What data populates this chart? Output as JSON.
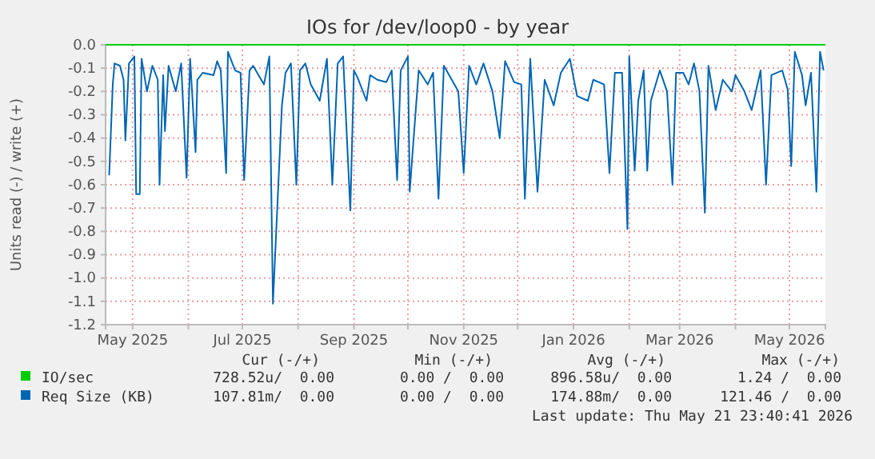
{
  "chart_data": {
    "type": "line",
    "title": "IOs for /dev/loop0 - by year",
    "ylabel": "Units read (-) / write (+)",
    "xlim": [
      "2025-04-16",
      "2026-05-21"
    ],
    "xticks": [
      {
        "value": "2025-05-01",
        "label": "May 2025"
      },
      {
        "value": "2025-06-01",
        "label": null
      },
      {
        "value": "2025-07-01",
        "label": "Jul 2025"
      },
      {
        "value": "2025-08-01",
        "label": null
      },
      {
        "value": "2025-09-01",
        "label": "Sep 2025"
      },
      {
        "value": "2025-10-01",
        "label": null
      },
      {
        "value": "2025-11-01",
        "label": "Nov 2025"
      },
      {
        "value": "2025-12-01",
        "label": null
      },
      {
        "value": "2026-01-01",
        "label": "Jan 2026"
      },
      {
        "value": "2026-02-01",
        "label": null
      },
      {
        "value": "2026-03-01",
        "label": "Mar 2026"
      },
      {
        "value": "2026-04-01",
        "label": null
      },
      {
        "value": "2026-05-01",
        "label": "May 2026"
      }
    ],
    "ylim": [
      -1.2,
      0
    ],
    "yticks": [
      {
        "value": 0,
        "label": "0.0"
      },
      {
        "value": -0.1,
        "label": "-0.1"
      },
      {
        "value": -0.2,
        "label": "-0.2"
      },
      {
        "value": -0.3,
        "label": "-0.3"
      },
      {
        "value": -0.4,
        "label": "-0.4"
      },
      {
        "value": -0.5,
        "label": "-0.5"
      },
      {
        "value": -0.6,
        "label": "-0.6"
      },
      {
        "value": -0.7,
        "label": "-0.7"
      },
      {
        "value": -0.8,
        "label": "-0.8"
      },
      {
        "value": -0.9,
        "label": "-0.9"
      },
      {
        "value": -1.0,
        "label": "-1.0"
      },
      {
        "value": -1.1,
        "label": "-1.1"
      },
      {
        "value": -1.2,
        "label": "-1.2"
      }
    ],
    "grid": true,
    "legend": "bottom",
    "series": [
      {
        "name": "IO/sec",
        "color": "#00cc00",
        "x": [
          "2025-04-16",
          "2026-05-21"
        ],
        "values": [
          0,
          0
        ]
      },
      {
        "name": "Req Size (KB)",
        "color": "#0066b3",
        "x": [
          "2025-04-18",
          "2025-04-20",
          "2025-04-21",
          "2025-04-24",
          "2025-04-26",
          "2025-04-27",
          "2025-04-29",
          "2025-05-02",
          "2025-05-03",
          "2025-05-05",
          "2025-05-06",
          "2025-05-09",
          "2025-05-12",
          "2025-05-15",
          "2025-05-16",
          "2025-05-18",
          "2025-05-19",
          "2025-05-21",
          "2025-05-25",
          "2025-05-28",
          "2025-05-31",
          "2025-06-02",
          "2025-06-05",
          "2025-06-06",
          "2025-06-09",
          "2025-06-15",
          "2025-06-17",
          "2025-06-19",
          "2025-06-22",
          "2025-06-23",
          "2025-06-27",
          "2025-06-30",
          "2025-07-02",
          "2025-07-05",
          "2025-07-07",
          "2025-07-10",
          "2025-07-13",
          "2025-07-16",
          "2025-07-18",
          "2025-07-23",
          "2025-07-25",
          "2025-07-28",
          "2025-07-31",
          "2025-08-02",
          "2025-08-05",
          "2025-08-08",
          "2025-08-13",
          "2025-08-17",
          "2025-08-20",
          "2025-08-23",
          "2025-08-26",
          "2025-08-30",
          "2025-09-01",
          "2025-09-03",
          "2025-09-08",
          "2025-09-10",
          "2025-09-14",
          "2025-09-19",
          "2025-09-22",
          "2025-09-25",
          "2025-09-27",
          "2025-10-01",
          "2025-10-02",
          "2025-10-04",
          "2025-10-07",
          "2025-10-12",
          "2025-10-15",
          "2025-10-18",
          "2025-10-21",
          "2025-10-29",
          "2025-11-01",
          "2025-11-04",
          "2025-11-08",
          "2025-11-12",
          "2025-11-17",
          "2025-11-21",
          "2025-11-24",
          "2025-11-29",
          "2025-12-03",
          "2025-12-05",
          "2025-12-08",
          "2025-12-12",
          "2025-12-16",
          "2025-12-21",
          "2025-12-25",
          "2025-12-30",
          "2026-01-03",
          "2026-01-09",
          "2026-01-12",
          "2026-01-18",
          "2026-01-21",
          "2026-01-24",
          "2026-01-28",
          "2026-01-31",
          "2026-02-01",
          "2026-02-04",
          "2026-02-06",
          "2026-02-09",
          "2026-02-11",
          "2026-02-13",
          "2026-02-18",
          "2026-02-22",
          "2026-02-25",
          "2026-02-27",
          "2026-03-03",
          "2026-03-06",
          "2026-03-09",
          "2026-03-12",
          "2026-03-15",
          "2026-03-17",
          "2026-03-21",
          "2026-03-25",
          "2026-03-30",
          "2026-04-01",
          "2026-04-06",
          "2026-04-10",
          "2026-04-15",
          "2026-04-18",
          "2026-04-21",
          "2026-04-27",
          "2026-04-30",
          "2026-05-02",
          "2026-05-04",
          "2026-05-08",
          "2026-05-10",
          "2026-05-13",
          "2026-05-16",
          "2026-05-18",
          "2026-05-20"
        ],
        "values": [
          -0.56,
          -0.17,
          -0.08,
          -0.09,
          -0.15,
          -0.41,
          -0.08,
          -0.05,
          -0.64,
          -0.64,
          -0.06,
          -0.2,
          -0.09,
          -0.15,
          -0.6,
          -0.13,
          -0.37,
          -0.09,
          -0.2,
          -0.08,
          -0.57,
          -0.06,
          -0.46,
          -0.15,
          -0.12,
          -0.13,
          -0.07,
          -0.11,
          -0.55,
          -0.03,
          -0.11,
          -0.12,
          -0.58,
          -0.11,
          -0.09,
          -0.13,
          -0.17,
          -0.05,
          -1.11,
          -0.26,
          -0.12,
          -0.08,
          -0.6,
          -0.11,
          -0.08,
          -0.17,
          -0.24,
          -0.06,
          -0.6,
          -0.08,
          -0.05,
          -0.71,
          -0.11,
          -0.14,
          -0.24,
          -0.13,
          -0.15,
          -0.16,
          -0.11,
          -0.58,
          -0.11,
          -0.05,
          -0.63,
          -0.42,
          -0.11,
          -0.17,
          -0.12,
          -0.66,
          -0.09,
          -0.2,
          -0.55,
          -0.09,
          -0.17,
          -0.08,
          -0.2,
          -0.4,
          -0.07,
          -0.16,
          -0.17,
          -0.66,
          -0.06,
          -0.63,
          -0.15,
          -0.26,
          -0.12,
          -0.06,
          -0.22,
          -0.24,
          -0.15,
          -0.17,
          -0.55,
          -0.12,
          -0.12,
          -0.79,
          -0.05,
          -0.54,
          -0.24,
          -0.11,
          -0.54,
          -0.24,
          -0.11,
          -0.2,
          -0.6,
          -0.12,
          -0.12,
          -0.17,
          -0.08,
          -0.2,
          -0.72,
          -0.09,
          -0.28,
          -0.15,
          -0.2,
          -0.13,
          -0.2,
          -0.28,
          -0.11,
          -0.6,
          -0.13,
          -0.11,
          -0.19,
          -0.52,
          -0.03,
          -0.13,
          -0.26,
          -0.12,
          -0.63,
          -0.03,
          -0.11
        ]
      }
    ],
    "annotations": [
      "Cur (-/+)",
      "Min (-/+)",
      "Avg (-/+)",
      "Max (-/+)",
      "728.52u/  0.00",
      "0.00 /  0.00",
      "896.58u/  0.00",
      "1.24 /  0.00",
      "107.81m/  0.00",
      "0.00 /  0.00",
      "174.88m/  0.00",
      "121.46 /  0.00",
      "Last update: Thu May 21 23:40:41 2026"
    ]
  }
}
